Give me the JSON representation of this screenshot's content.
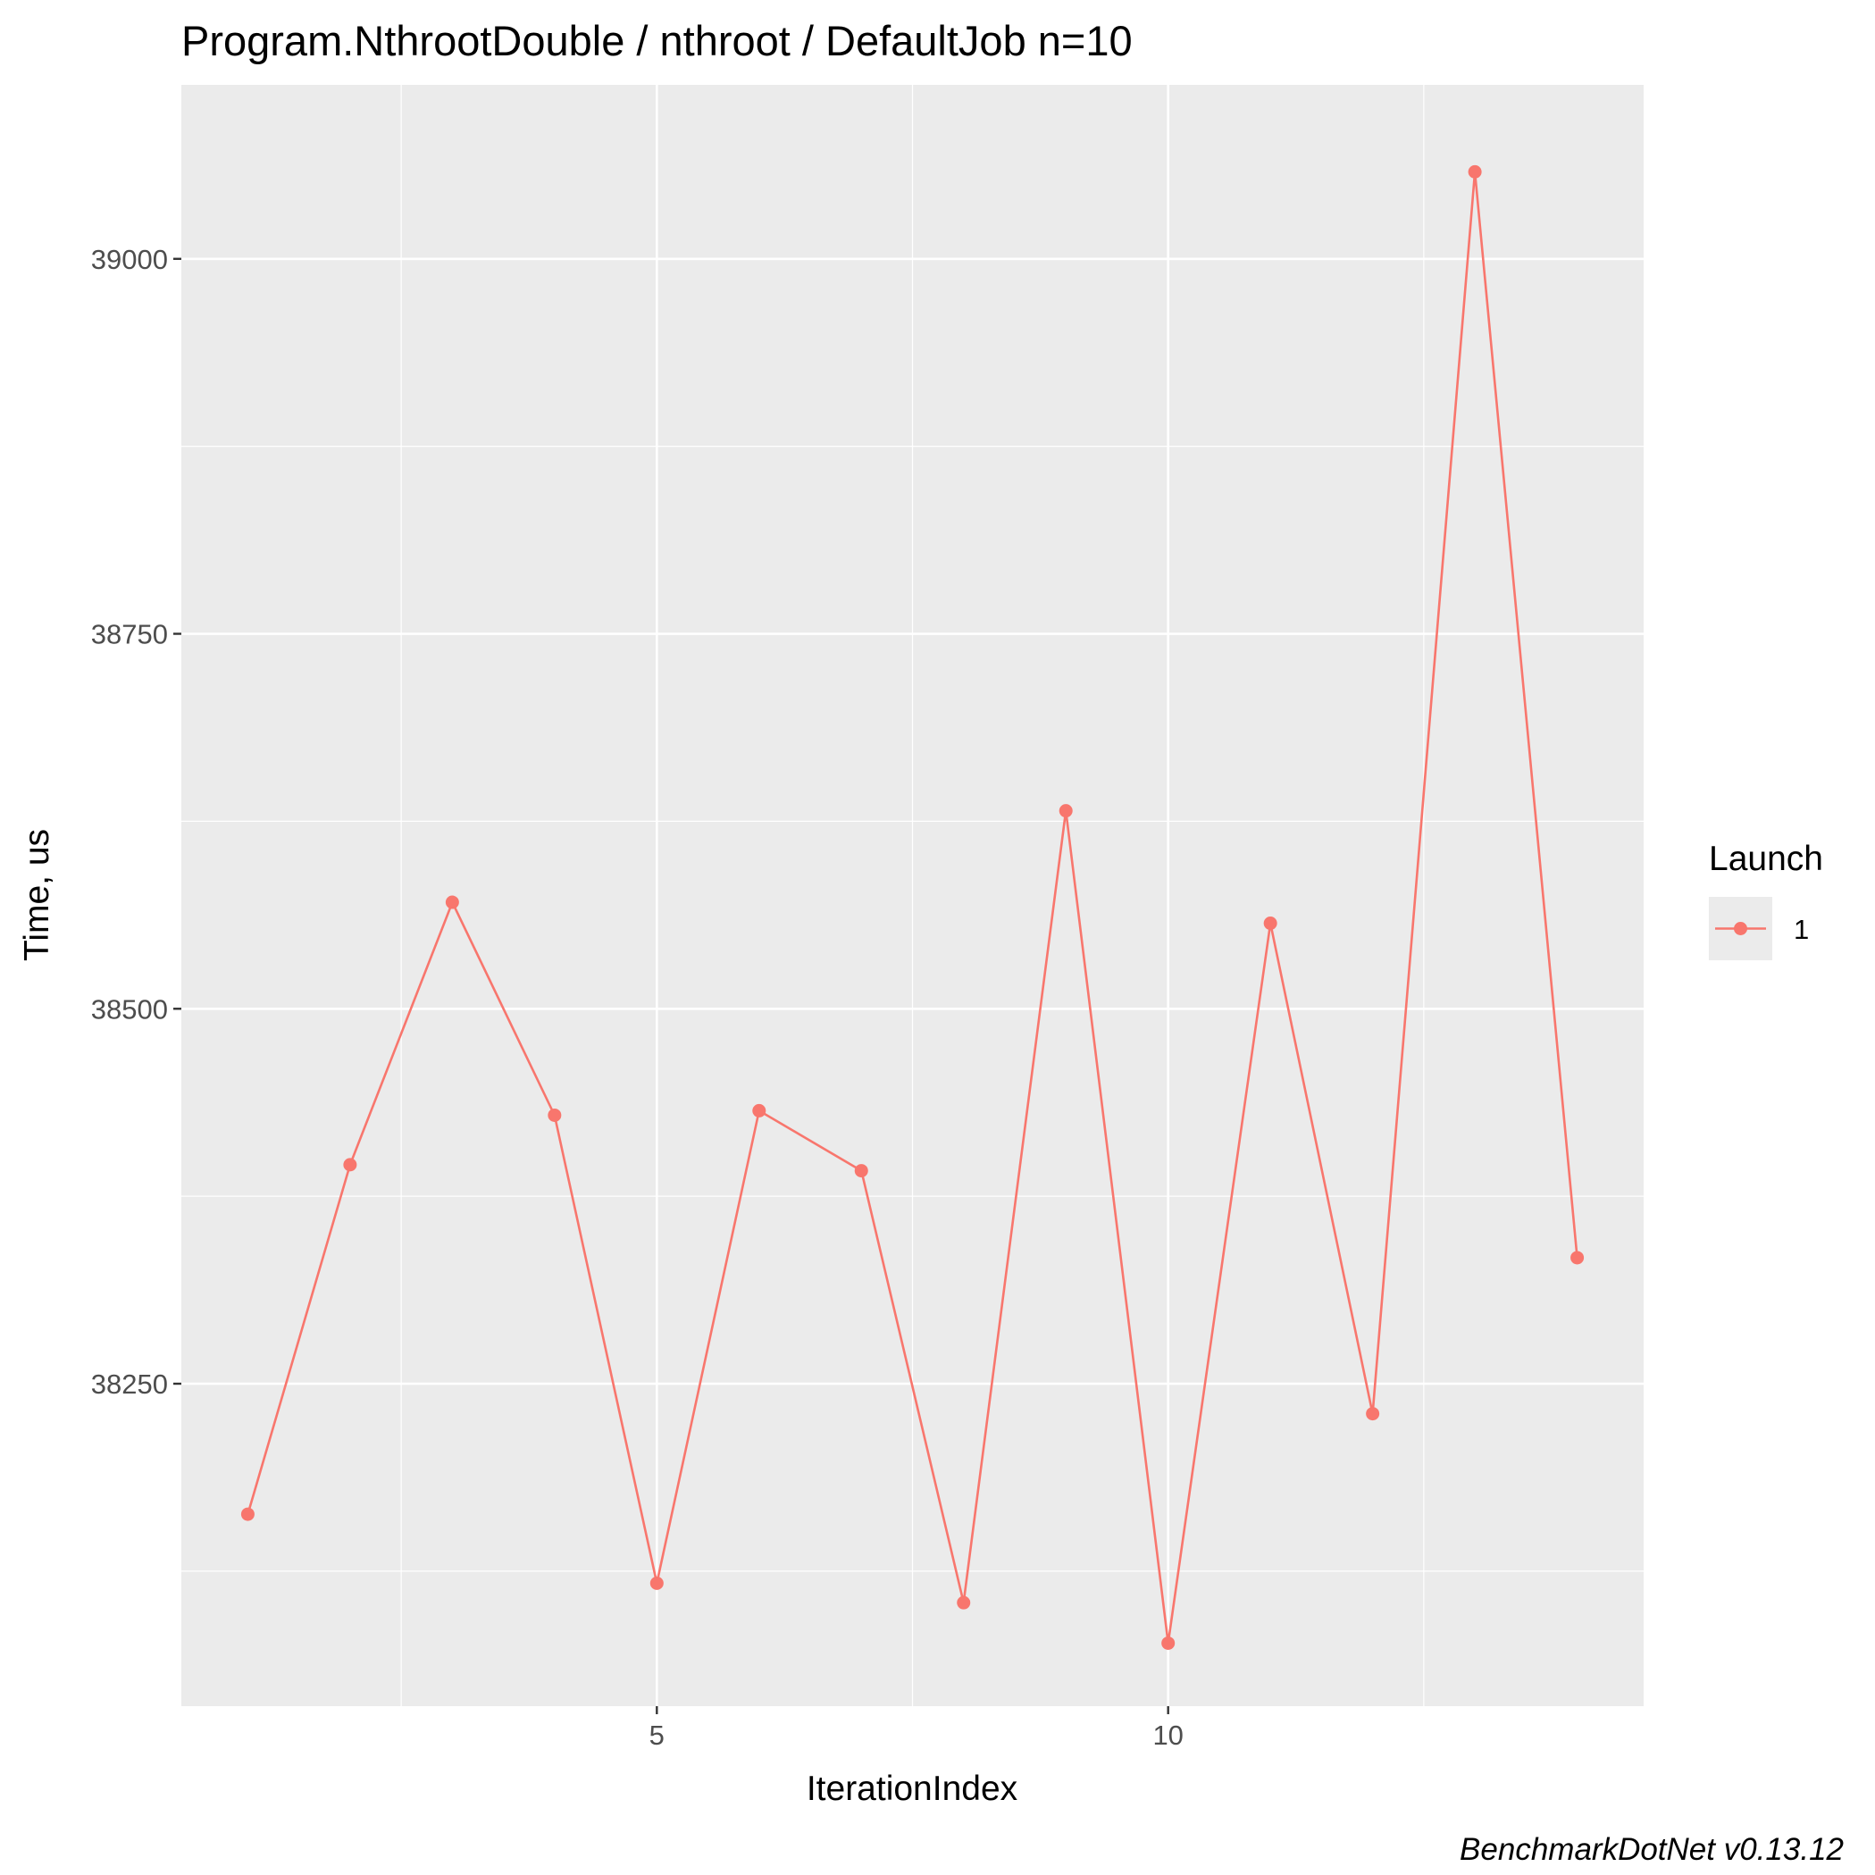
{
  "chart_data": {
    "type": "line",
    "title": "Program.NthrootDouble / nthroot / DefaultJob n=10",
    "xlabel": "IterationIndex",
    "ylabel": "Time, us",
    "caption": "BenchmarkDotNet v0.13.12",
    "x_ticks": [
      5,
      10
    ],
    "y_ticks": [
      38250,
      38500,
      38750,
      39000
    ],
    "xlim": [
      0.35,
      14.65
    ],
    "ylim": [
      38035,
      39116
    ],
    "grid": true,
    "legend": {
      "title": "Launch",
      "position": "right",
      "entries": [
        "1"
      ]
    },
    "series": [
      {
        "name": "1",
        "color": "#F8766D",
        "x": [
          1,
          2,
          3,
          4,
          5,
          6,
          7,
          8,
          9,
          10,
          11,
          12,
          13,
          14
        ],
        "y": [
          38163,
          38396,
          38571,
          38429,
          38117,
          38432,
          38392,
          38104,
          38632,
          38077,
          38557,
          38230,
          39058,
          38334
        ]
      }
    ]
  }
}
